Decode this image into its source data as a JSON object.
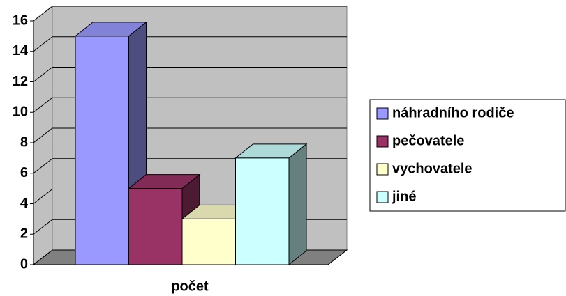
{
  "chart_data": {
    "type": "bar",
    "categories": [
      "počet"
    ],
    "series": [
      {
        "name": "náhradního rodiče",
        "color": "#9999ff",
        "values": [
          15
        ]
      },
      {
        "name": "pečovatele",
        "color": "#993366",
        "values": [
          5
        ]
      },
      {
        "name": "vychovatele",
        "color": "#ffffcc",
        "values": [
          3
        ]
      },
      {
        "name": "jiné",
        "color": "#ccffff",
        "values": [
          7
        ]
      }
    ],
    "ylim": [
      0,
      16
    ],
    "yticks": [
      0,
      2,
      4,
      6,
      8,
      10,
      12,
      14,
      16
    ],
    "grid": true,
    "legend": "right"
  }
}
